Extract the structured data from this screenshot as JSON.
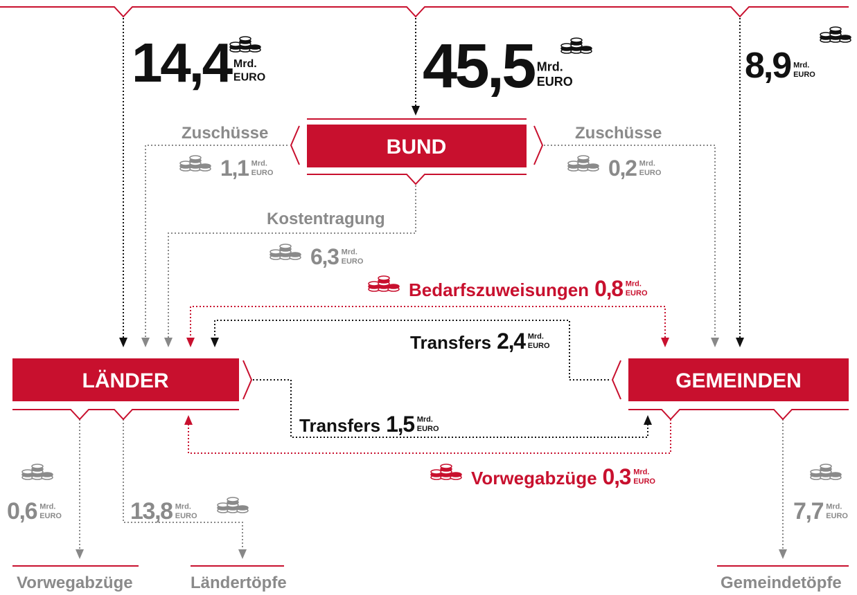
{
  "unit": {
    "mrd": "Mrd.",
    "euro": "EURO"
  },
  "nodes": {
    "bund": "BUND",
    "laender": "LÄNDER",
    "gemeinden": "GEMEINDEN"
  },
  "flows": [
    {
      "amount": "14,4"
    },
    {
      "amount": "45,5"
    },
    {
      "amount": "8,9"
    },
    {
      "label": "Zuschüsse",
      "amount": "1,1"
    },
    {
      "label": "Zuschüsse",
      "amount": "0,2"
    },
    {
      "label": "Kostentragung",
      "amount": "6,3"
    },
    {
      "label": "Bedarfszuweisungen",
      "amount": "0,8"
    },
    {
      "label": "Transfers",
      "amount": "2,4"
    },
    {
      "label": "Transfers",
      "amount": "1,5"
    },
    {
      "label": "Vorwegabzüge",
      "amount": "0,3"
    },
    {
      "amount": "0,6"
    },
    {
      "amount": "13,8"
    },
    {
      "amount": "7,7"
    }
  ],
  "targets": [
    "Vorwegabzüge",
    "Ländertöpfe",
    "Gemeindetöpfe"
  ]
}
